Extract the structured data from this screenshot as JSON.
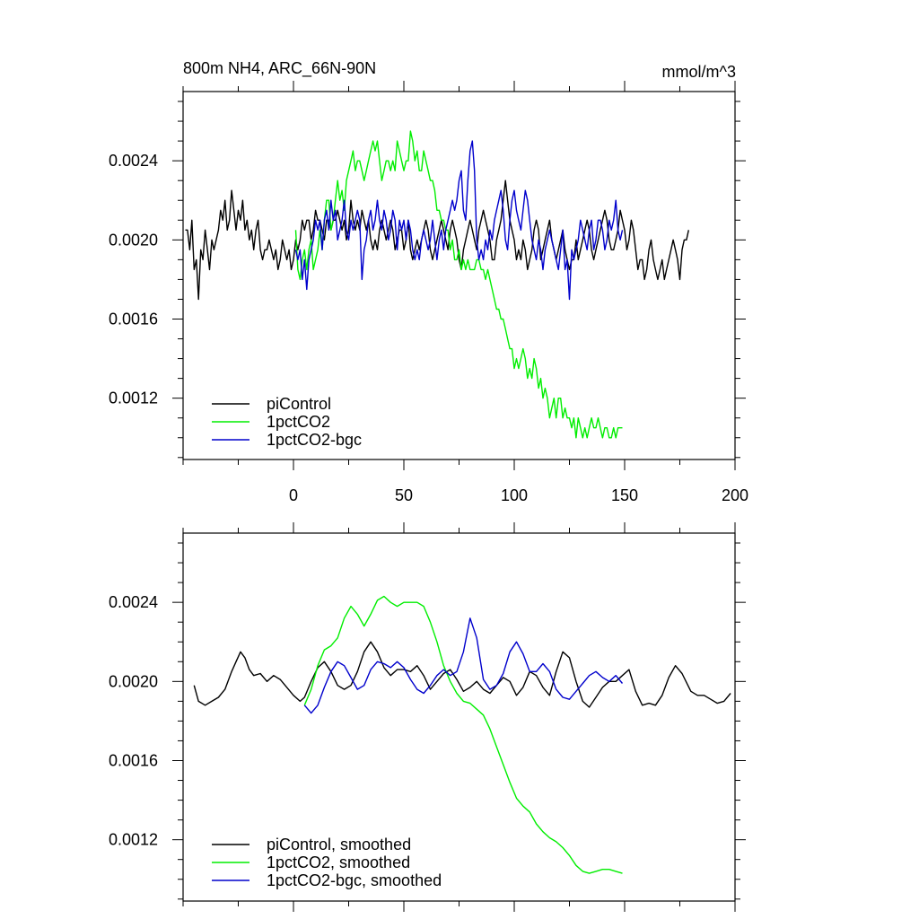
{
  "colors": {
    "piControl": "#000000",
    "1pctCO2": "#00ee00",
    "1pctCO2-bgc": "#0000cc"
  },
  "chart_data": [
    {
      "type": "line",
      "title_left": "800m NH4, ARC_66N-90N",
      "title_right": "mmol/m^3",
      "xlabel": "",
      "ylabel": "",
      "xlim": [
        -50,
        200
      ],
      "ylim": [
        0.00089,
        0.00275
      ],
      "xticks": [
        0,
        50,
        100,
        150,
        200
      ],
      "xtick_labels": [
        "0",
        "50",
        "100",
        "150",
        "200"
      ],
      "yticks": [
        0.0012,
        0.0016,
        0.002,
        0.0024
      ],
      "ytick_labels": [
        "0.0012",
        "0.0016",
        "0.0020",
        "0.0024"
      ],
      "legend": "bottom-left",
      "series": [
        {
          "name": "piControl",
          "color_key": "piControl",
          "x0": -49,
          "values": [
            0.00205,
            0.00205,
            0.00195,
            0.0021,
            0.00185,
            0.0019,
            0.0017,
            0.00195,
            0.0019,
            0.00205,
            0.00195,
            0.00185,
            0.002,
            0.00195,
            0.002,
            0.00205,
            0.00215,
            0.0021,
            0.0022,
            0.00205,
            0.0021,
            0.00225,
            0.00215,
            0.00205,
            0.00215,
            0.0021,
            0.0022,
            0.00205,
            0.0021,
            0.002,
            0.00205,
            0.00195,
            0.00205,
            0.0021,
            0.00195,
            0.0019,
            0.00195,
            0.00195,
            0.002,
            0.00195,
            0.0019,
            0.00195,
            0.00185,
            0.0019,
            0.002,
            0.00195,
            0.0019,
            0.00195,
            0.00185,
            0.0019,
            0.002,
            0.00195,
            0.002,
            0.0021,
            0.00205,
            0.0021,
            0.0021,
            0.002,
            0.00205,
            0.00215,
            0.0021,
            0.0021,
            0.00205,
            0.002,
            0.0021,
            0.0021,
            0.00205,
            0.0021,
            0.0021,
            0.00215,
            0.0021,
            0.00205,
            0.0021,
            0.002,
            0.00205,
            0.0022,
            0.0021,
            0.00205,
            0.0021,
            0.00205,
            0.00215,
            0.0021,
            0.00205,
            0.0021,
            0.002,
            0.00195,
            0.002,
            0.00195,
            0.00205,
            0.0021,
            0.00205,
            0.002,
            0.00205,
            0.0021,
            0.00205,
            0.00195,
            0.002,
            0.00205,
            0.00205,
            0.00195,
            0.002,
            0.0021,
            0.00195,
            0.0019,
            0.00195,
            0.002,
            0.00195,
            0.002,
            0.00205,
            0.0021,
            0.00205,
            0.00195,
            0.0019,
            0.00195,
            0.002,
            0.00205,
            0.0021,
            0.00205,
            0.002,
            0.00195,
            0.00205,
            0.0021,
            0.00205,
            0.002,
            0.0019,
            0.00185,
            0.00195,
            0.002,
            0.00205,
            0.0021,
            0.00205,
            0.002,
            0.00195,
            0.00205,
            0.0021,
            0.00215,
            0.0021,
            0.00205,
            0.002,
            0.0019,
            0.0019,
            0.002,
            0.00205,
            0.0021,
            0.0022,
            0.0023,
            0.0022,
            0.0021,
            0.00205,
            0.002,
            0.0019,
            0.00195,
            0.0019,
            0.002,
            0.00195,
            0.00185,
            0.0019,
            0.00195,
            0.00205,
            0.0021,
            0.00205,
            0.0019,
            0.00195,
            0.002,
            0.00205,
            0.0021,
            0.002,
            0.00195,
            0.0019,
            0.00195,
            0.002,
            0.00205,
            0.00195,
            0.0019,
            0.00185,
            0.0019,
            0.0019,
            0.002,
            0.0019,
            0.00195,
            0.002,
            0.00205,
            0.0021,
            0.00205,
            0.00195,
            0.0019,
            0.00195,
            0.002,
            0.00205,
            0.0021,
            0.00215,
            0.0021,
            0.002,
            0.00195,
            0.00195,
            0.002,
            0.00205,
            0.00215,
            0.0021,
            0.00205,
            0.00195,
            0.002,
            0.0021,
            0.00205,
            0.00195,
            0.00185,
            0.0019,
            0.0019,
            0.0018,
            0.00185,
            0.00195,
            0.002,
            0.0019,
            0.00185,
            0.0018,
            0.00185,
            0.0019,
            0.0018,
            0.00185,
            0.0019,
            0.00195,
            0.002,
            0.00195,
            0.0019,
            0.0018,
            0.00195,
            0.002,
            0.002,
            0.00205
          ]
        },
        {
          "name": "1pctCO2",
          "color_key": "1pctCO2",
          "x0": 1,
          "values": [
            0.00205,
            0.00185,
            0.0018,
            0.0019,
            0.00195,
            0.00185,
            0.00195,
            0.002,
            0.00185,
            0.0019,
            0.00195,
            0.00205,
            0.00195,
            0.0021,
            0.0022,
            0.0022,
            0.00205,
            0.0021,
            0.0022,
            0.0023,
            0.0022,
            0.00225,
            0.00215,
            0.0023,
            0.00235,
            0.0024,
            0.00245,
            0.00235,
            0.0024,
            0.0024,
            0.00235,
            0.0023,
            0.00235,
            0.0024,
            0.00245,
            0.0025,
            0.00245,
            0.0025,
            0.0024,
            0.0023,
            0.00235,
            0.0024,
            0.0024,
            0.00235,
            0.0024,
            0.00235,
            0.0025,
            0.00245,
            0.0024,
            0.00235,
            0.0024,
            0.0024,
            0.00255,
            0.0025,
            0.0024,
            0.00245,
            0.00235,
            0.00235,
            0.00245,
            0.0024,
            0.00235,
            0.0023,
            0.0023,
            0.00225,
            0.00215,
            0.00215,
            0.0021,
            0.0021,
            0.00205,
            0.00205,
            0.00195,
            0.002,
            0.0019,
            0.0019,
            0.00195,
            0.00185,
            0.0019,
            0.00185,
            0.0019,
            0.00185,
            0.00185,
            0.00185,
            0.0019,
            0.0019,
            0.00185,
            0.00185,
            0.0018,
            0.00185,
            0.0018,
            0.00175,
            0.0017,
            0.00165,
            0.00165,
            0.0016,
            0.0016,
            0.00155,
            0.0015,
            0.00145,
            0.00145,
            0.00135,
            0.0014,
            0.00135,
            0.0014,
            0.00145,
            0.0014,
            0.0013,
            0.00135,
            0.0013,
            0.0014,
            0.00135,
            0.00125,
            0.0013,
            0.0012,
            0.00125,
            0.0012,
            0.0011,
            0.00115,
            0.0012,
            0.0011,
            0.0012,
            0.0012,
            0.0011,
            0.00115,
            0.0011,
            0.0011,
            0.00105,
            0.0011,
            0.001,
            0.0011,
            0.00105,
            0.001,
            0.00105,
            0.001,
            0.00105,
            0.0011,
            0.00105,
            0.00105,
            0.0011,
            0.00105,
            0.001,
            0.00105,
            0.00105,
            0.001,
            0.001,
            0.00105,
            0.001,
            0.00105,
            0.00105,
            0.00105
          ]
        },
        {
          "name": "1pctCO2-bgc",
          "color_key": "1pctCO2-bgc",
          "x0": 1,
          "values": [
            0.00195,
            0.0019,
            0.00195,
            0.0018,
            0.0019,
            0.00175,
            0.0019,
            0.00195,
            0.002,
            0.0021,
            0.00205,
            0.0021,
            0.00195,
            0.0021,
            0.00215,
            0.00205,
            0.0022,
            0.0021,
            0.00215,
            0.002,
            0.00205,
            0.0021,
            0.0022,
            0.00205,
            0.002,
            0.0021,
            0.00205,
            0.0021,
            0.00215,
            0.0021,
            0.0018,
            0.00195,
            0.002,
            0.0021,
            0.00215,
            0.00205,
            0.0021,
            0.0022,
            0.0021,
            0.00205,
            0.00215,
            0.0021,
            0.002,
            0.00205,
            0.00215,
            0.0021,
            0.00195,
            0.0021,
            0.00205,
            0.0021,
            0.002,
            0.0021,
            0.00205,
            0.00195,
            0.0019,
            0.00195,
            0.0019,
            0.002,
            0.00205,
            0.002,
            0.00195,
            0.002,
            0.0021,
            0.002,
            0.0019,
            0.002,
            0.00205,
            0.00195,
            0.00205,
            0.0021,
            0.00215,
            0.0022,
            0.00215,
            0.0022,
            0.0023,
            0.00235,
            0.00215,
            0.0021,
            0.0023,
            0.00245,
            0.0025,
            0.00235,
            0.002,
            0.0019,
            0.00195,
            0.0019,
            0.002,
            0.00195,
            0.00205,
            0.002,
            0.0021,
            0.00215,
            0.0022,
            0.00225,
            0.00215,
            0.002,
            0.00195,
            0.0021,
            0.0022,
            0.00225,
            0.00215,
            0.0021,
            0.00205,
            0.00215,
            0.00225,
            0.0022,
            0.0021,
            0.002,
            0.00195,
            0.0019,
            0.002,
            0.00195,
            0.00185,
            0.00195,
            0.002,
            0.00205,
            0.002,
            0.00195,
            0.0019,
            0.00185,
            0.00195,
            0.00205,
            0.00185,
            0.0019,
            0.0017,
            0.00195,
            0.0019,
            0.00195,
            0.002,
            0.0021,
            0.00205,
            0.002,
            0.00195,
            0.00205,
            0.0021,
            0.00195,
            0.002,
            0.0021,
            0.0021,
            0.00205,
            0.00195,
            0.002,
            0.0021,
            0.00205,
            0.0021,
            0.0022,
            0.00205,
            0.002,
            0.00205
          ]
        }
      ],
      "legend_entries": [
        "piControl",
        "1pctCO2",
        "1pctCO2-bgc"
      ]
    },
    {
      "type": "line",
      "xlim": [
        -50,
        200
      ],
      "ylim": [
        0.00089,
        0.00275
      ],
      "xticks": [
        0,
        50,
        100,
        150,
        200
      ],
      "yticks": [
        0.0012,
        0.0016,
        0.002,
        0.0024
      ],
      "ytick_labels": [
        "0.0012",
        "0.0016",
        "0.0020",
        "0.0024"
      ],
      "legend": "bottom-left",
      "series": [
        {
          "name": "piControl, smoothed",
          "color_key": "piControl",
          "x": [
            -45,
            -43,
            -40,
            -37,
            -34,
            -31,
            -28,
            -26,
            -24,
            -22,
            -20,
            -18,
            -15,
            -12,
            -9,
            -6,
            -3,
            0,
            3,
            5,
            8,
            11,
            14,
            17,
            20,
            23,
            26,
            29,
            32,
            35,
            38,
            41,
            44,
            47,
            50,
            53,
            56,
            59,
            62,
            65,
            68,
            71,
            74,
            77,
            80,
            83,
            86,
            89,
            92,
            95,
            98,
            101,
            104,
            107,
            110,
            113,
            116,
            119,
            122,
            125,
            128,
            131,
            134,
            137,
            140,
            143,
            146,
            149,
            152,
            155,
            158,
            161,
            164,
            167,
            170,
            173,
            176,
            180,
            183,
            186,
            189,
            192,
            195,
            198
          ],
          "values": [
            0.00198,
            0.0019,
            0.00188,
            0.0019,
            0.00192,
            0.00196,
            0.00205,
            0.0021,
            0.00215,
            0.00212,
            0.00206,
            0.00203,
            0.00204,
            0.002,
            0.00203,
            0.00201,
            0.00197,
            0.00193,
            0.0019,
            0.00192,
            0.002,
            0.00207,
            0.0021,
            0.00205,
            0.00198,
            0.00196,
            0.00198,
            0.00205,
            0.00215,
            0.0022,
            0.00215,
            0.00207,
            0.00203,
            0.00206,
            0.00206,
            0.00205,
            0.00208,
            0.00203,
            0.00196,
            0.002,
            0.00204,
            0.00206,
            0.00201,
            0.00195,
            0.00197,
            0.002,
            0.00196,
            0.00194,
            0.00198,
            0.00202,
            0.002,
            0.00193,
            0.00197,
            0.00205,
            0.00203,
            0.00197,
            0.00193,
            0.00205,
            0.00215,
            0.00212,
            0.002,
            0.0019,
            0.00187,
            0.00192,
            0.00197,
            0.002,
            0.002,
            0.00203,
            0.00206,
            0.00195,
            0.00188,
            0.00189,
            0.00188,
            0.00193,
            0.00202,
            0.00208,
            0.00204,
            0.00195,
            0.00193,
            0.00193,
            0.00191,
            0.00189,
            0.0019,
            0.00194
          ]
        },
        {
          "name": "1pctCO2, smoothed",
          "color_key": "1pctCO2",
          "x": [
            5,
            8,
            11,
            14,
            17,
            20,
            23,
            26,
            29,
            32,
            35,
            38,
            41,
            44,
            47,
            50,
            53,
            56,
            59,
            62,
            65,
            68,
            71,
            74,
            77,
            80,
            83,
            86,
            89,
            92,
            95,
            98,
            101,
            104,
            107,
            110,
            113,
            116,
            119,
            122,
            125,
            128,
            131,
            134,
            137,
            140,
            143,
            146,
            149
          ],
          "values": [
            0.00188,
            0.00196,
            0.00208,
            0.00216,
            0.00218,
            0.00222,
            0.00232,
            0.00238,
            0.00234,
            0.00228,
            0.00234,
            0.00241,
            0.00243,
            0.0024,
            0.00238,
            0.0024,
            0.0024,
            0.0024,
            0.00238,
            0.0023,
            0.0022,
            0.00208,
            0.002,
            0.00194,
            0.0019,
            0.00189,
            0.00186,
            0.00183,
            0.00176,
            0.00167,
            0.00158,
            0.00149,
            0.00141,
            0.00137,
            0.00134,
            0.00128,
            0.00124,
            0.00121,
            0.00119,
            0.00116,
            0.00112,
            0.00107,
            0.00104,
            0.00103,
            0.00104,
            0.00105,
            0.00105,
            0.00104,
            0.00103
          ]
        },
        {
          "name": "1pctCO2-bgc, smoothed",
          "color_key": "1pctCO2-bgc",
          "x": [
            5,
            8,
            11,
            14,
            17,
            20,
            23,
            26,
            29,
            32,
            35,
            38,
            41,
            44,
            47,
            50,
            53,
            56,
            59,
            62,
            65,
            68,
            71,
            74,
            77,
            80,
            83,
            86,
            89,
            92,
            95,
            98,
            101,
            104,
            107,
            110,
            113,
            116,
            119,
            122,
            125,
            128,
            131,
            134,
            137,
            140,
            143,
            146,
            149
          ],
          "values": [
            0.00188,
            0.00184,
            0.00188,
            0.00197,
            0.00205,
            0.0021,
            0.00208,
            0.00202,
            0.00196,
            0.00198,
            0.00206,
            0.0021,
            0.00209,
            0.00207,
            0.0021,
            0.00207,
            0.00201,
            0.00196,
            0.00194,
            0.00198,
            0.00203,
            0.00206,
            0.00203,
            0.00205,
            0.00215,
            0.00232,
            0.00222,
            0.00201,
            0.00196,
            0.00198,
            0.00204,
            0.00215,
            0.0022,
            0.00214,
            0.00205,
            0.00205,
            0.00209,
            0.00205,
            0.00196,
            0.00192,
            0.00191,
            0.00195,
            0.00199,
            0.00203,
            0.00205,
            0.00202,
            0.002,
            0.00203,
            0.00199
          ]
        }
      ],
      "legend_entries": [
        "piControl, smoothed",
        "1pctCO2, smoothed",
        "1pctCO2-bgc, smoothed"
      ]
    }
  ]
}
